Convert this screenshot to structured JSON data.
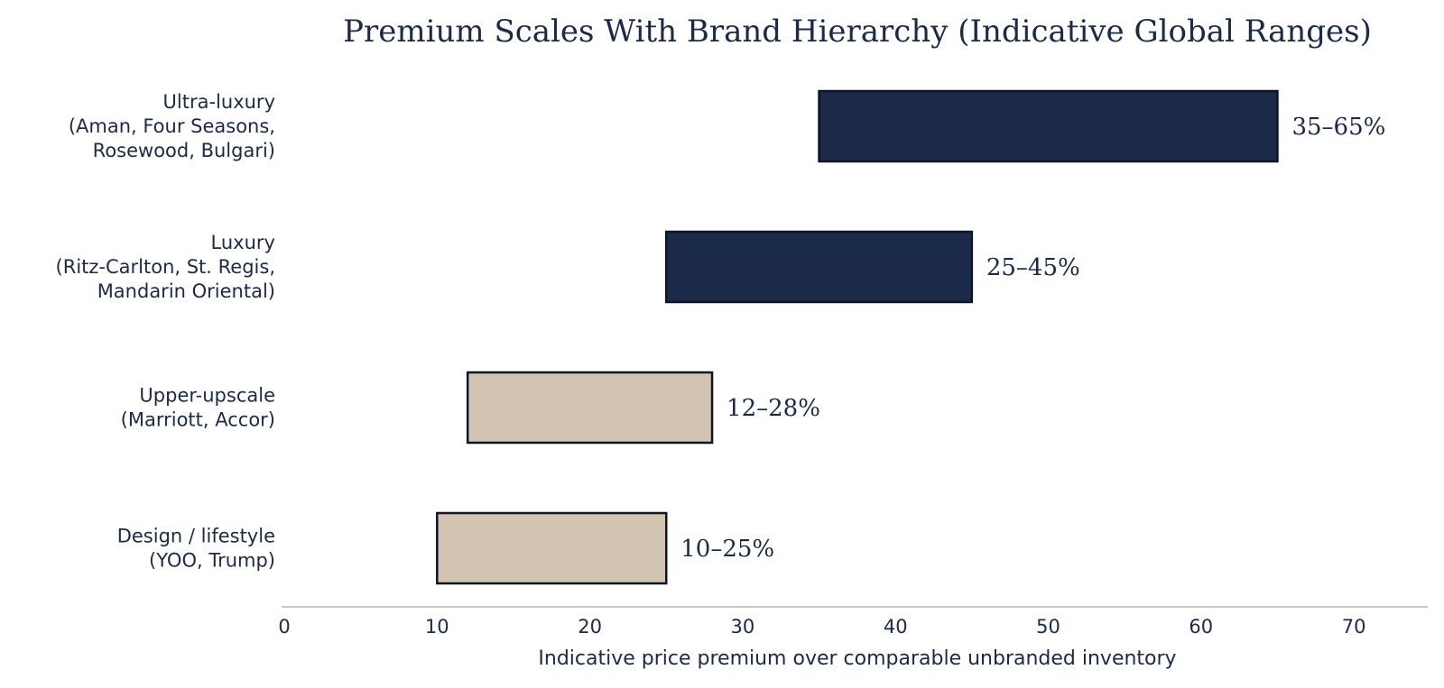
{
  "chart_data": {
    "type": "bar",
    "orientation": "horizontal",
    "title": "Premium Scales With Brand Hierarchy (Indicative Global Ranges)",
    "xlabel": "Indicative price premium over comparable unbranded inventory",
    "ylabel": "",
    "xlim": [
      0,
      75
    ],
    "xticks": [
      0,
      10,
      20,
      30,
      40,
      50,
      60,
      70
    ],
    "grid": false,
    "legend": "none",
    "categories": [
      [
        "Ultra-luxury",
        "(Aman, Four Seasons,",
        "Rosewood, Bulgari)"
      ],
      [
        "Luxury",
        "(Ritz-Carlton, St. Regis,",
        "Mandarin Oriental)"
      ],
      [
        "Upper-upscale",
        "(Marriott, Accor)"
      ],
      [
        "Design / lifestyle",
        "(YOO, Trump)"
      ]
    ],
    "series": [
      {
        "ranges": [
          [
            35,
            65
          ],
          [
            25,
            45
          ],
          [
            12,
            28
          ],
          [
            10,
            25
          ]
        ],
        "labels": [
          "35–65%",
          "25–45%",
          "12–28%",
          "10–25%"
        ],
        "colors": [
          "#1c2a4a",
          "#1c2a4a",
          "#d1c4b1",
          "#d1c4b1"
        ]
      }
    ]
  },
  "colors": {
    "text": "#1b2a49",
    "outline": "#0d1426",
    "axis": "#c6c6c6",
    "dark_bar": "#1c2a4a",
    "light_bar": "#d1c4b1"
  }
}
